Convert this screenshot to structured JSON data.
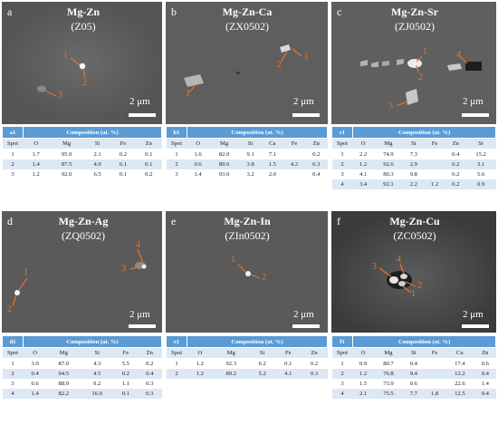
{
  "panels": {
    "a": {
      "letter": "a",
      "alloy": "Mg-Zn",
      "code": "(Z05)",
      "scale": "2 μm",
      "spots": [
        "1",
        "2",
        "3"
      ]
    },
    "b": {
      "letter": "b",
      "alloy": "Mg-Zn-Ca",
      "code": "(ZX0502)",
      "scale": "2 μm",
      "spots": [
        "1",
        "2",
        "3"
      ]
    },
    "c": {
      "letter": "c",
      "alloy": "Mg-Zn-Sr",
      "code": "(ZJ0502)",
      "scale": "2 μm",
      "spots": [
        "1",
        "2",
        "3",
        "4"
      ]
    },
    "d": {
      "letter": "d",
      "alloy": "Mg-Zn-Ag",
      "code": "(ZQ0502)",
      "scale": "2 μm",
      "spots": [
        "1",
        "2",
        "3",
        "4"
      ]
    },
    "e": {
      "letter": "e",
      "alloy": "Mg-Zn-In",
      "code": "(ZIn0502)",
      "scale": "2 μm",
      "spots": [
        "1",
        "2"
      ]
    },
    "f": {
      "letter": "f",
      "alloy": "Mg-Zn-Cu",
      "code": "(ZC0502)",
      "scale": "2 μm",
      "spots": [
        "1",
        "2",
        "3",
        "4"
      ]
    }
  },
  "tables": {
    "a1": {
      "tag": "a1",
      "title": "Composition (at. %)",
      "columns": [
        "Spot",
        "O",
        "Mg",
        "Si",
        "Fe",
        "Zn"
      ],
      "rows": [
        [
          "1",
          "1.7",
          "95.9",
          "2.1",
          "0.2",
          "0.1"
        ],
        [
          "2",
          "1.4",
          "87.5",
          "4.9",
          "6.1",
          "0.1"
        ],
        [
          "3",
          "1.2",
          "92.0",
          "6.5",
          "0.1",
          "0.2"
        ]
      ]
    },
    "b1": {
      "tag": "b1",
      "title": "Composition (at. %)",
      "columns": [
        "Spot",
        "O",
        "Mg",
        "Si",
        "Ca",
        "Fe",
        "Zn"
      ],
      "rows": [
        [
          "1",
          "1.6",
          "82.0",
          "9.1",
          "7.1",
          "",
          "0.2"
        ],
        [
          "2",
          "0.6",
          "89.6",
          "3.8",
          "1.5",
          "4.2",
          "0.3"
        ],
        [
          "3",
          "1.4",
          "93.0",
          "3.2",
          "2.0",
          "",
          "0.4"
        ]
      ]
    },
    "c1": {
      "tag": "c1",
      "title": "Composition (at. %)",
      "columns": [
        "Spot",
        "O",
        "Mg",
        "Si",
        "Fe",
        "Zn",
        "Sr"
      ],
      "rows": [
        [
          "1",
          "2.2",
          "74.9",
          "7.3",
          "",
          "0.4",
          "15.2"
        ],
        [
          "2",
          "1.2",
          "92.6",
          "2.9",
          "",
          "0.2",
          "3.1"
        ],
        [
          "3",
          "4.1",
          "80.3",
          "9.8",
          "",
          "0.2",
          "5.6"
        ],
        [
          "4",
          "3.4",
          "92.1",
          "2.2",
          "1.2",
          "0.2",
          "0.9"
        ]
      ]
    },
    "d1": {
      "tag": "d1",
      "title": "Composition (at. %)",
      "columns": [
        "Spot",
        "O",
        "Mg",
        "Si",
        "Fe",
        "Zn"
      ],
      "rows": [
        [
          "1",
          "3.0",
          "87.0",
          "4.3",
          "5.5",
          "0.2"
        ],
        [
          "2",
          "0.4",
          "94.5",
          "4.5",
          "0.2",
          "0.4"
        ],
        [
          "3",
          "0.6",
          "88.9",
          "9.2",
          "1.1",
          "0.3"
        ],
        [
          "4",
          "1.4",
          "82.2",
          "16.0",
          "0.1",
          "0.3"
        ]
      ]
    },
    "e1": {
      "tag": "e1",
      "title": "Composition (at. %)",
      "columns": [
        "Spot",
        "O",
        "Mg",
        "Si",
        "Fe",
        "Zn"
      ],
      "rows": [
        [
          "1",
          "1.2",
          "92.3",
          "6.2",
          "0.1",
          "0.2"
        ],
        [
          "2",
          "1.2",
          "89.2",
          "5.2",
          "4.1",
          "0.3"
        ]
      ]
    },
    "f1": {
      "tag": "f1",
      "title": "Composition (at. %)",
      "columns": [
        "Spot",
        "O",
        "Mg",
        "Si",
        "Fe",
        "Cu",
        "Zn"
      ],
      "rows": [
        [
          "1",
          "0.9",
          "80.7",
          "0.4",
          "",
          "17.4",
          "0.6"
        ],
        [
          "2",
          "1.2",
          "76.8",
          "9.4",
          "",
          "12.2",
          "0.4"
        ],
        [
          "3",
          "1.5",
          "73.9",
          "0.6",
          "",
          "22.6",
          "1.4"
        ],
        [
          "4",
          "2.1",
          "75.5",
          "7.7",
          "1.8",
          "12.5",
          "0.4"
        ]
      ]
    }
  },
  "colors": {
    "sem_background": "#5d5d5d",
    "table_header": "#5b9bd5",
    "table_band": "#dde8f4",
    "arrow": "#e8742a"
  }
}
